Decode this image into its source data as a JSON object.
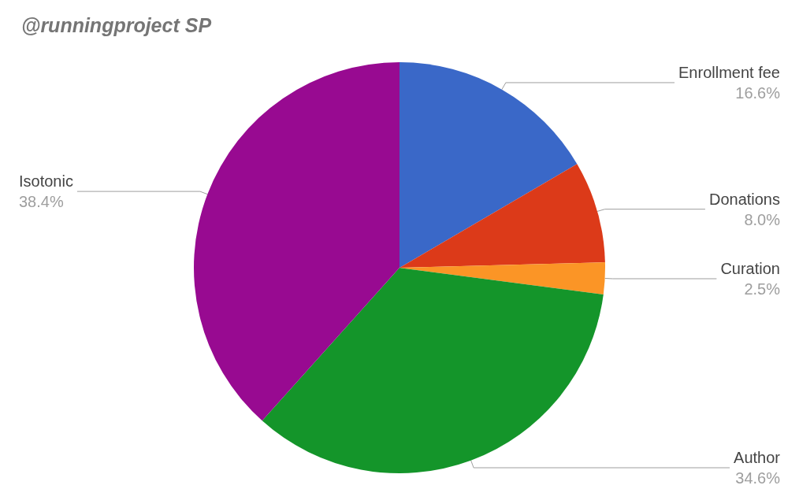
{
  "chart_data": {
    "type": "pie",
    "title": "@runningproject SP",
    "categories": [
      "Enrollment fee",
      "Donations",
      "Curation",
      "Author",
      "Isotonic"
    ],
    "values": [
      16.6,
      8.0,
      2.5,
      34.6,
      38.4
    ],
    "value_labels": [
      "16.6%",
      "8.0%",
      "2.5%",
      "34.6%",
      "38.4%"
    ],
    "colors": [
      "#3a68c8",
      "#dc3a19",
      "#fb9526",
      "#14952a",
      "#980a91"
    ],
    "legend": false
  }
}
